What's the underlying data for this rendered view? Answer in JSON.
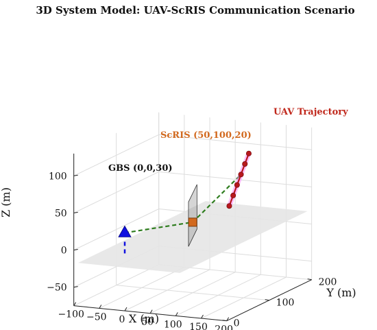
{
  "chart_data": {
    "type": "3d-line-scatter",
    "title": "3D System Model: UAV-ScRIS Communication Scenario",
    "xlabel": "X (m)",
    "ylabel": "Y (m)",
    "zlabel": "Z (m)",
    "xlim": [
      -100,
      200
    ],
    "ylim": [
      0,
      200
    ],
    "zlim": [
      -75,
      130
    ],
    "xticks": [
      -100,
      -50,
      0,
      50,
      100,
      150,
      200
    ],
    "yticks": [
      0,
      100,
      200
    ],
    "zticks": [
      -50,
      0,
      50,
      100
    ],
    "grid": true,
    "ground_plane": {
      "x": [
        -50,
        150
      ],
      "y": [
        -50,
        250
      ],
      "z": 0,
      "color": "#e6e6e6"
    },
    "annotations": [
      {
        "text": "GBS (0,0,30)",
        "color": "#111111"
      },
      {
        "text": "ScRIS (50,100,20)",
        "color": "#d2691e"
      },
      {
        "text": "UAV Trajectory",
        "color": "#c0281c"
      }
    ],
    "series": [
      {
        "role": "gbs",
        "points": [
          {
            "x": 0,
            "y": 0,
            "z": 30
          }
        ],
        "marker": "triangle-up",
        "color": "#1010e0",
        "projection_to_ground": true
      },
      {
        "role": "scris",
        "points": [
          {
            "x": 50,
            "y": 100,
            "z": 20
          }
        ],
        "marker": "square",
        "color": "#d2691e",
        "panel_color": "#888888"
      },
      {
        "role": "uav",
        "points": [
          {
            "x": 80,
            "y": 150,
            "z": 30
          },
          {
            "x": 86,
            "y": 152,
            "z": 44
          },
          {
            "x": 92,
            "y": 154,
            "z": 58
          },
          {
            "x": 98,
            "y": 156,
            "z": 72
          },
          {
            "x": 104,
            "y": 158,
            "z": 86
          },
          {
            "x": 110,
            "y": 160,
            "z": 100
          }
        ],
        "marker": "circle",
        "color": "#b8181e",
        "highlight_color": "#ff80ff"
      },
      {
        "role": "link",
        "path": [
          "gbs",
          "scris",
          "uav-3"
        ],
        "style": "dashed",
        "color": "#2e7d1e"
      }
    ]
  }
}
